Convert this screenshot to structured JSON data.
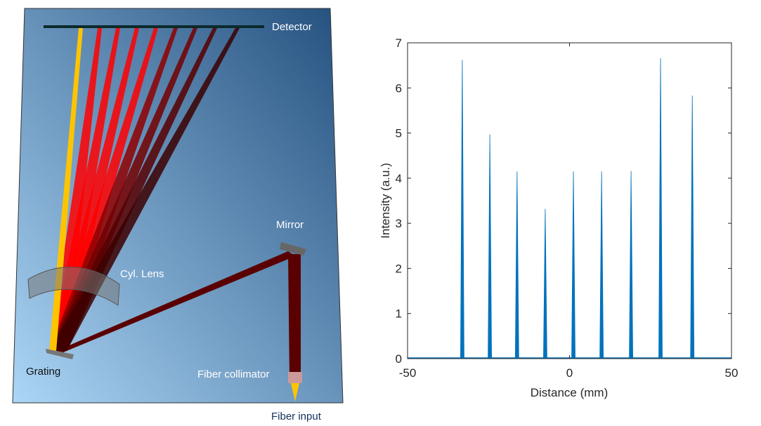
{
  "diagram": {
    "labels": {
      "detector": "Detector",
      "mirror": "Mirror",
      "lens": "Cyl. Lens",
      "grating": "Grating",
      "collimator": "Fiber collimator",
      "fiber_input": "Fiber input"
    },
    "colors": {
      "background_top": "#2a5585",
      "background_bottom": "#a9d3f3",
      "ray_red": "#ff0000",
      "ray_dark": "#5a0000",
      "ray_yellow": "#ffc400"
    }
  },
  "chart_data": {
    "type": "line",
    "title": "",
    "xlabel": "Distance (mm)",
    "ylabel": "Intensity (a.u.)",
    "xlim": [
      -50,
      50
    ],
    "ylim": [
      0,
      7
    ],
    "xticks": [
      -50,
      0,
      50
    ],
    "yticks": [
      0,
      1,
      2,
      3,
      4,
      5,
      6,
      7
    ],
    "grid": false,
    "color": "#0072bd",
    "peaks": [
      {
        "x": -33.1,
        "y": 6.62
      },
      {
        "x": -24.6,
        "y": 4.97
      },
      {
        "x": -16.2,
        "y": 4.15
      },
      {
        "x": -7.5,
        "y": 3.32
      },
      {
        "x": 1.2,
        "y": 4.15
      },
      {
        "x": 9.9,
        "y": 4.15
      },
      {
        "x": 19.0,
        "y": 4.16
      },
      {
        "x": 28.1,
        "y": 6.66
      },
      {
        "x": 37.9,
        "y": 5.83
      }
    ]
  }
}
